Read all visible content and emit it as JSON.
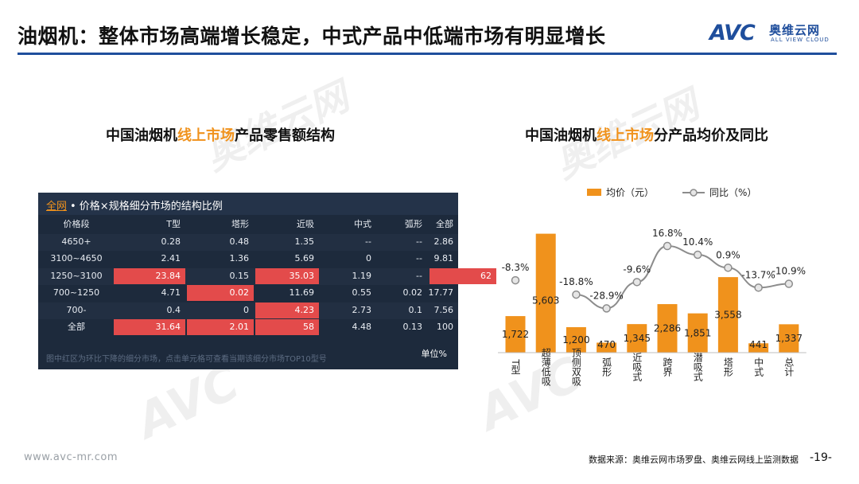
{
  "header": {
    "title": "油烟机：整体市场高端增长稳定，中式产品中低端市场有明显增长",
    "logo_main": "AVC",
    "logo_cn": "奥维云网",
    "logo_en": "ALL VIEW CLOUD"
  },
  "left": {
    "subtitle_pre": "中国油烟机",
    "subtitle_hl": "线上市场",
    "subtitle_post": "产品零售额结构",
    "panel_tab": "全网",
    "panel_title": "• 价格×规格细分市场的结构比例",
    "columns": [
      "价格段",
      "T型",
      "塔形",
      "近吸",
      "中式",
      "弧形",
      "全部"
    ],
    "rows": [
      {
        "cells": [
          "4650+",
          "0.28",
          "0.48",
          "1.35",
          "--",
          "--",
          "2.86"
        ],
        "red": []
      },
      {
        "cells": [
          "3100~4650",
          "2.41",
          "1.36",
          "5.69",
          "0",
          "--",
          "9.81"
        ],
        "red": []
      },
      {
        "cells": [
          "1250~3100",
          "23.84",
          "0.15",
          "35.03",
          "1.19",
          "--",
          "62"
        ],
        "red": [
          1,
          3,
          6
        ]
      },
      {
        "cells": [
          "700~1250",
          "4.71",
          "0.02",
          "11.69",
          "0.55",
          "0.02",
          "17.77"
        ],
        "red": [
          2
        ]
      },
      {
        "cells": [
          "700-",
          "0.4",
          "0",
          "4.23",
          "2.73",
          "0.1",
          "7.56"
        ],
        "red": [
          3
        ]
      },
      {
        "cells": [
          "全部",
          "31.64",
          "2.01",
          "58",
          "4.48",
          "0.13",
          "100"
        ],
        "red": [
          1,
          2,
          3
        ]
      }
    ],
    "footnote": "图中红区为环比下降的细分市场，点击单元格可查看当期该细分市场TOP10型号",
    "unit": "单位%"
  },
  "right": {
    "subtitle_pre": "中国油烟机",
    "subtitle_hl": "线上市场",
    "subtitle_post": "分产品均价及同比"
  },
  "chart_data": {
    "type": "bar",
    "categories": [
      "T型",
      "超薄低吸",
      "顶侧双吸",
      "弧形",
      "近吸式",
      "跨界",
      "潜吸式",
      "塔形",
      "中式",
      "总计"
    ],
    "series": [
      {
        "name": "均价（元）",
        "type": "bar",
        "values": [
          1722,
          5603,
          1200,
          470,
          1345,
          2286,
          1851,
          3558,
          441,
          1337
        ],
        "labels": [
          "1,722",
          "5,603",
          "1,200",
          "470",
          "1,345",
          "2,286",
          "1,851",
          "3,558",
          "441",
          "1,337"
        ]
      },
      {
        "name": "同比（%）",
        "type": "line",
        "values": [
          -8.3,
          null,
          -18.8,
          -28.9,
          -9.6,
          16.8,
          10.4,
          0.9,
          -13.7,
          -10.9
        ],
        "labels": [
          "-8.3%",
          "",
          "-18.8%",
          "-28.9%",
          "-9.6%",
          "16.8%",
          "10.4%",
          "0.9%",
          "-13.7%",
          "-10.9%"
        ]
      }
    ],
    "bar_ylim": [
      0,
      6000
    ],
    "line_ylim": [
      -45,
      25
    ],
    "legend_position": "top",
    "colors": {
      "bar": "#f0921c",
      "line": "#8c8c8c",
      "point_fill": "#e6e6e6"
    }
  },
  "footer": {
    "url": "www.avc-mr.com",
    "source": "数据来源：奥维云网市场罗盘、奥维云网线上监测数据",
    "page": "-19-"
  }
}
